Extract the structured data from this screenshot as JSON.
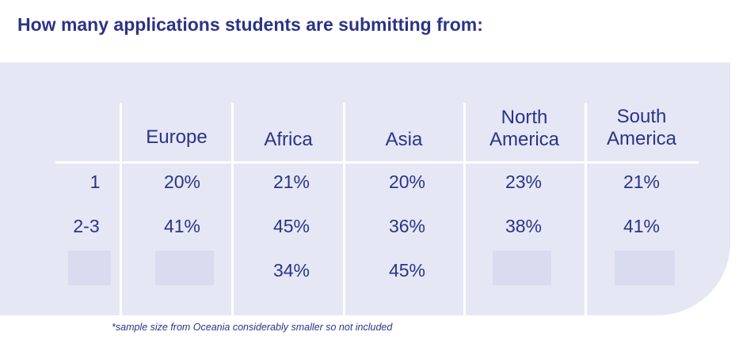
{
  "title": "How many applications students are submitting from:",
  "table": {
    "columns": [
      "Europe",
      "Africa",
      "Asia",
      "North America",
      "South America"
    ],
    "column_lines": {
      "north_america": [
        "North",
        "America"
      ],
      "south_america": [
        "South",
        "America"
      ]
    },
    "rows": [
      {
        "label": "1",
        "values": [
          "20%",
          "21%",
          "20%",
          "23%",
          "21%"
        ]
      },
      {
        "label": "2-3",
        "values": [
          "41%",
          "45%",
          "36%",
          "38%",
          "41%"
        ]
      },
      {
        "label": "",
        "values": [
          "",
          "34%",
          "45%",
          "",
          ""
        ]
      }
    ]
  },
  "footnote": "*sample size from Oceania considerably smaller so not included",
  "colors": {
    "text": "#2b3486",
    "panel": "#e5e7f5",
    "grid": "#ffffff"
  }
}
